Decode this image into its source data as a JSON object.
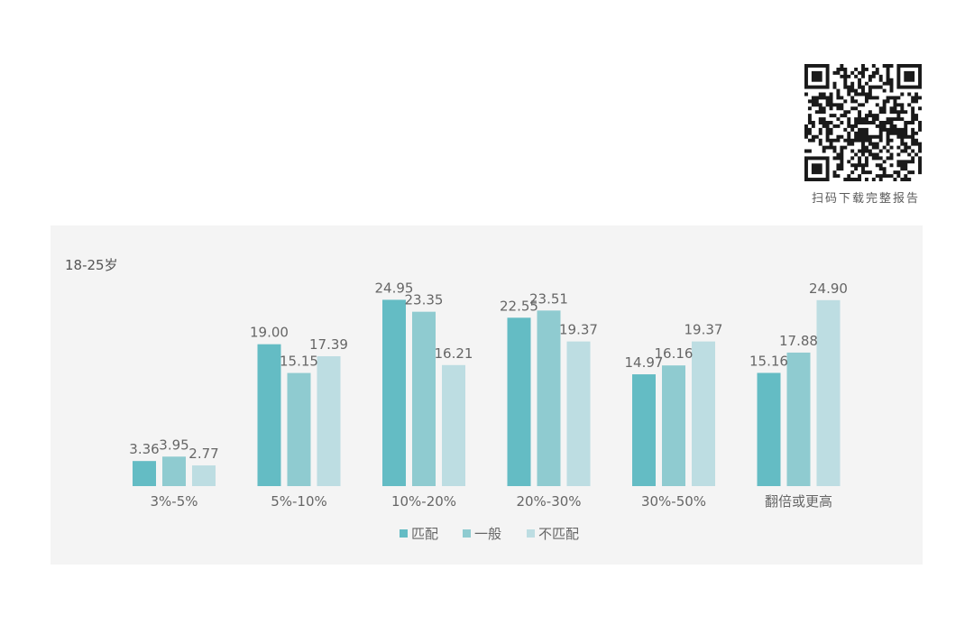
{
  "qr": {
    "caption": "扫码下载完整报告",
    "icon": "qr-code-icon"
  },
  "colors": {
    "match": "#64bcc4",
    "general": "#8fcbd0",
    "mismatch": "#bddde2",
    "panel_bg": "#f4f4f4"
  },
  "chart_data": {
    "type": "bar",
    "subtitle": "18-25岁",
    "categories": [
      "3%-5%",
      "5%-10%",
      "10%-20%",
      "20%-30%",
      "30%-50%",
      "翻倍或更高"
    ],
    "series": [
      {
        "name": "匹配",
        "values": [
          3.36,
          19.0,
          24.95,
          22.55,
          14.97,
          15.16
        ]
      },
      {
        "name": "一般",
        "values": [
          3.95,
          15.15,
          23.35,
          23.51,
          16.16,
          17.88
        ]
      },
      {
        "name": "不匹配",
        "values": [
          2.77,
          17.39,
          16.21,
          19.37,
          19.37,
          24.9
        ]
      }
    ],
    "value_labels": [
      [
        "3.36",
        "19.00",
        "24.95",
        "22.55",
        "14.97",
        "15.16"
      ],
      [
        "3.95",
        "15.15",
        "23.35",
        "23.51",
        "16.16",
        "17.88"
      ],
      [
        "2.77",
        "17.39",
        "16.21",
        "19.37",
        "19.37",
        "24.90"
      ]
    ],
    "ylim": [
      0,
      25
    ],
    "grid": false,
    "legend_position": "bottom-center"
  }
}
